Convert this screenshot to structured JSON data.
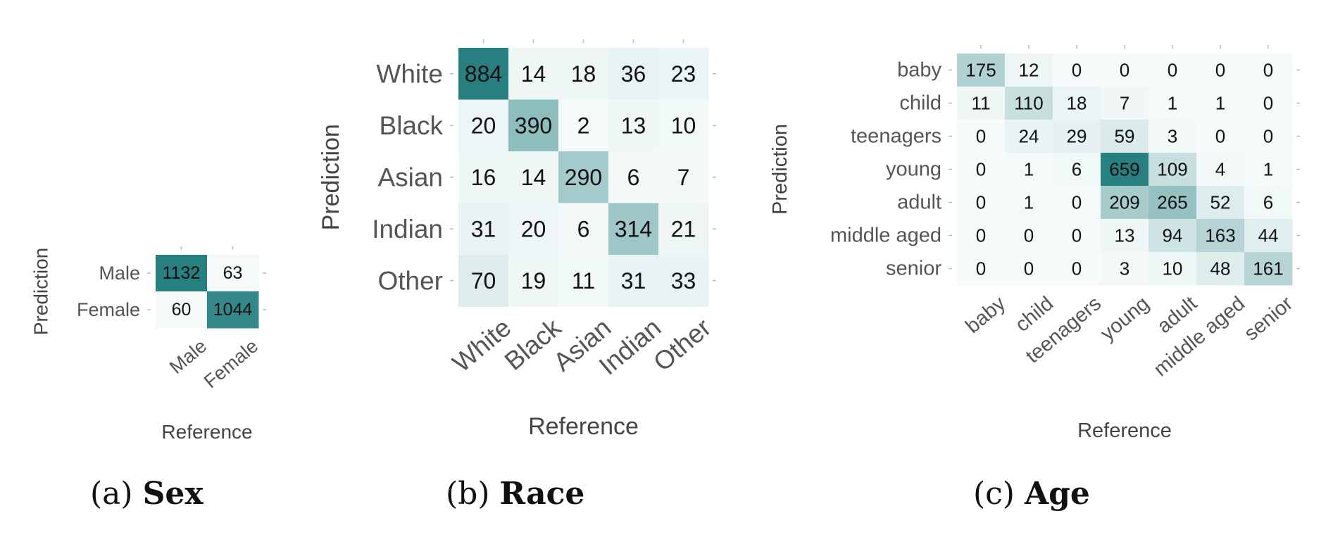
{
  "chart_data": [
    {
      "type": "heatmap",
      "caption_letter": "(a)",
      "caption_name": "Sex",
      "xlabel": "Reference",
      "ylabel": "Prediction",
      "x_categories": [
        "Male",
        "Female"
      ],
      "y_categories": [
        "Male",
        "Female"
      ],
      "values": [
        [
          1132,
          63
        ],
        [
          60,
          1044
        ]
      ],
      "colors": {
        "low": "#f5fafa",
        "high": "#277f80"
      }
    },
    {
      "type": "heatmap",
      "caption_letter": "(b)",
      "caption_name": "Race",
      "xlabel": "Reference",
      "ylabel": "Prediction",
      "x_categories": [
        "White",
        "Black",
        "Asian",
        "Indian",
        "Other"
      ],
      "y_categories": [
        "White",
        "Black",
        "Asian",
        "Indian",
        "Other"
      ],
      "values": [
        [
          884,
          14,
          18,
          36,
          23
        ],
        [
          20,
          390,
          2,
          13,
          10
        ],
        [
          16,
          14,
          290,
          6,
          7
        ],
        [
          31,
          20,
          6,
          314,
          21
        ],
        [
          70,
          19,
          11,
          31,
          33
        ]
      ],
      "colors": {
        "low": "#f5fafa",
        "high": "#277f80"
      }
    },
    {
      "type": "heatmap",
      "caption_letter": "(c)",
      "caption_name": "Age",
      "xlabel": "Reference",
      "ylabel": "Prediction",
      "x_categories": [
        "baby",
        "child",
        "teenagers",
        "young",
        "adult",
        "middle aged",
        "senior"
      ],
      "y_categories": [
        "baby",
        "child",
        "teenagers",
        "young",
        "adult",
        "middle aged",
        "senior"
      ],
      "values": [
        [
          175,
          12,
          0,
          0,
          0,
          0,
          0
        ],
        [
          11,
          110,
          18,
          7,
          1,
          1,
          0
        ],
        [
          0,
          24,
          29,
          59,
          3,
          0,
          0
        ],
        [
          0,
          1,
          6,
          659,
          109,
          4,
          1
        ],
        [
          0,
          1,
          0,
          209,
          265,
          52,
          6
        ],
        [
          0,
          0,
          0,
          13,
          94,
          163,
          44
        ],
        [
          0,
          0,
          0,
          3,
          10,
          48,
          161
        ]
      ],
      "colors": {
        "low": "#f5fafa",
        "high": "#277f80"
      }
    }
  ]
}
